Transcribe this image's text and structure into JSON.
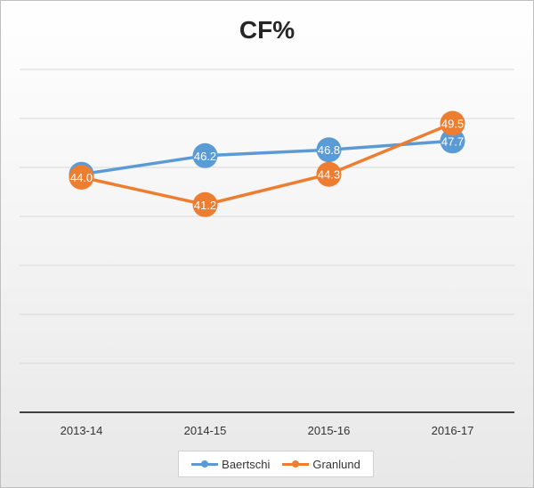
{
  "chart_data": {
    "type": "line",
    "title": "CF%",
    "categories": [
      "2013-14",
      "2014-15",
      "2015-16",
      "2016-17"
    ],
    "series": [
      {
        "name": "Baertschi",
        "values": [
          44.3,
          46.2,
          46.8,
          47.7
        ],
        "color": "#5b9bd5"
      },
      {
        "name": "Granlund",
        "values": [
          44.0,
          41.2,
          44.3,
          49.5
        ],
        "color": "#ed7d31"
      }
    ],
    "ylim": [
      20,
      55
    ],
    "grid": true,
    "legend_position": "bottom"
  }
}
